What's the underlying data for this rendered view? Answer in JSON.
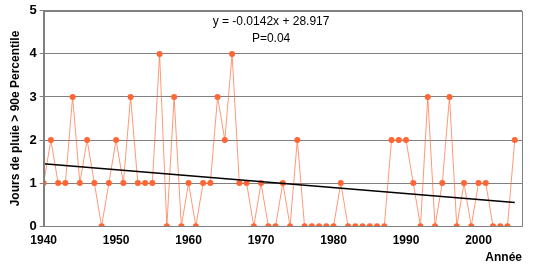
{
  "chart_data": {
    "type": "line",
    "x_label": "Année",
    "y_label": "Jours de pluie > 90e Percentile",
    "annotations": [
      "y = -0.0142x + 28.917",
      "P=0.04"
    ],
    "x": [
      1940,
      1941,
      1942,
      1943,
      1944,
      1945,
      1946,
      1947,
      1948,
      1949,
      1950,
      1951,
      1952,
      1953,
      1954,
      1955,
      1956,
      1957,
      1958,
      1959,
      1960,
      1961,
      1962,
      1963,
      1964,
      1965,
      1966,
      1967,
      1968,
      1969,
      1970,
      1971,
      1972,
      1973,
      1974,
      1975,
      1976,
      1977,
      1978,
      1979,
      1980,
      1981,
      1982,
      1983,
      1984,
      1985,
      1986,
      1987,
      1988,
      1989,
      1990,
      1991,
      1992,
      1993,
      1994,
      1995,
      1996,
      1997,
      1998,
      1999,
      2000,
      2001,
      2002,
      2003,
      2004,
      2005
    ],
    "series": [
      {
        "color": "#ff6633",
        "marker": "circle",
        "line_style": "solid",
        "values": [
          1,
          2,
          1,
          1,
          3,
          1,
          2,
          1,
          0,
          1,
          2,
          1,
          3,
          1,
          1,
          1,
          4,
          0,
          3,
          0,
          1,
          0,
          1,
          1,
          3,
          2,
          4,
          1,
          1,
          0,
          1,
          0,
          0,
          1,
          0,
          2,
          0,
          0,
          0,
          0,
          0,
          1,
          0,
          0,
          0,
          0,
          0,
          0,
          2,
          2,
          2,
          1,
          0,
          3,
          0,
          1,
          3,
          0,
          1,
          0,
          1,
          1,
          0,
          0,
          0,
          2
        ]
      },
      {
        "color": "#000000",
        "line_style": "solid",
        "x": [
          1940,
          2005
        ],
        "values": [
          1.45,
          0.55
        ]
      }
    ],
    "xlim": [
      1940,
      2006
    ],
    "xticks": [
      1940,
      1950,
      1960,
      1970,
      1980,
      1990,
      2000
    ],
    "ylim": [
      0,
      5
    ],
    "yticks": [
      0,
      1,
      2,
      3,
      4,
      5
    ],
    "grid": "y"
  }
}
